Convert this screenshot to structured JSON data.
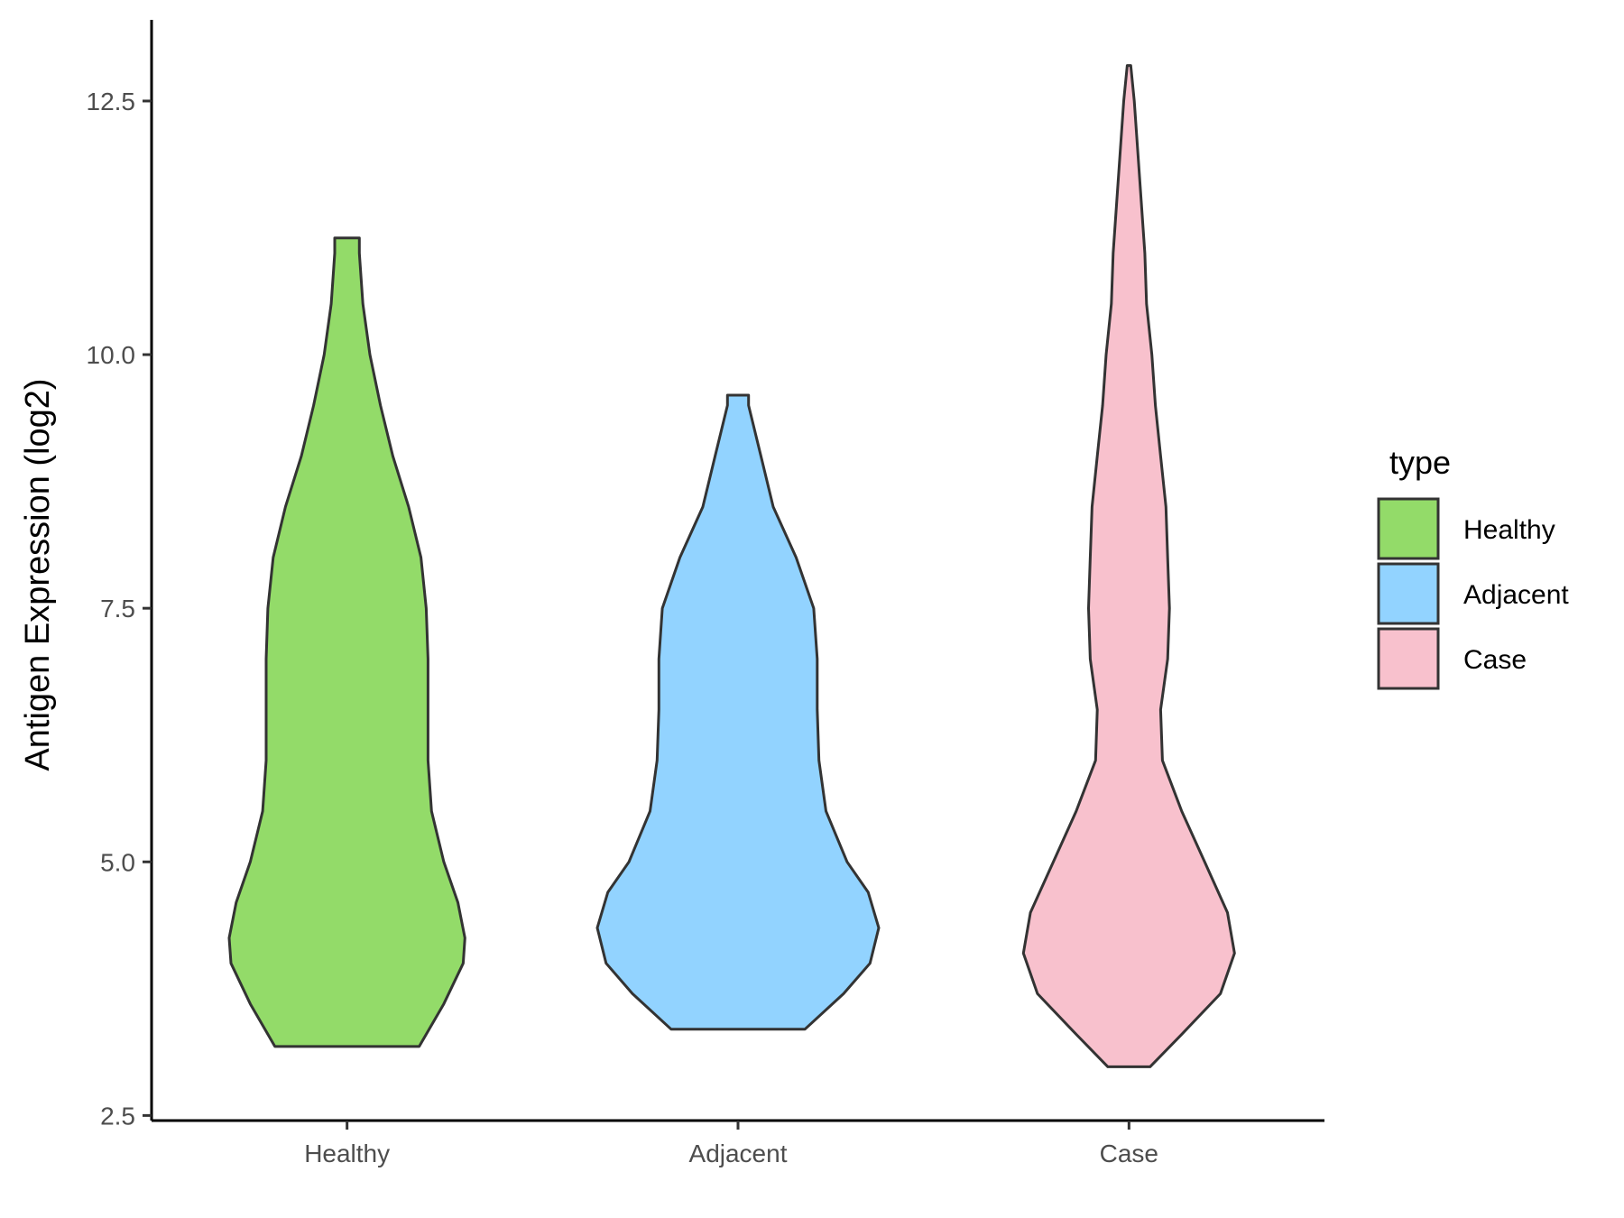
{
  "chart_data": {
    "type": "violin",
    "ylabel": "Antigen Expression (log2)",
    "ylim": [
      2.45,
      13.3
    ],
    "yticks": [
      2.5,
      5.0,
      7.5,
      10.0,
      12.5
    ],
    "ytick_labels": [
      "2.5",
      "5.0",
      "7.5",
      "10.0",
      "12.5"
    ],
    "categories": [
      "Healthy",
      "Adjacent",
      "Case"
    ],
    "legend": {
      "title": "type",
      "position": "right",
      "entries": [
        {
          "label": "Healthy",
          "color": "#93DB69"
        },
        {
          "label": "Adjacent",
          "color": "#92D3FF"
        },
        {
          "label": "Case",
          "color": "#F8C1CD"
        }
      ]
    },
    "series": [
      {
        "category": "Healthy",
        "color": "#93DB69",
        "min": 3.18,
        "max": 11.15,
        "profile": [
          [
            3.18,
            0.41
          ],
          [
            3.6,
            0.55
          ],
          [
            4.0,
            0.66
          ],
          [
            4.25,
            0.67
          ],
          [
            4.6,
            0.63
          ],
          [
            5.0,
            0.55
          ],
          [
            5.5,
            0.48
          ],
          [
            6.0,
            0.46
          ],
          [
            6.5,
            0.46
          ],
          [
            7.0,
            0.46
          ],
          [
            7.5,
            0.45
          ],
          [
            8.0,
            0.42
          ],
          [
            8.5,
            0.35
          ],
          [
            9.0,
            0.26
          ],
          [
            9.5,
            0.19
          ],
          [
            10.0,
            0.13
          ],
          [
            10.5,
            0.09
          ],
          [
            11.0,
            0.07
          ],
          [
            11.15,
            0.07
          ]
        ]
      },
      {
        "category": "Adjacent",
        "color": "#92D3FF",
        "min": 3.35,
        "max": 9.6,
        "profile": [
          [
            3.35,
            0.38
          ],
          [
            3.7,
            0.6
          ],
          [
            4.0,
            0.75
          ],
          [
            4.35,
            0.8
          ],
          [
            4.7,
            0.74
          ],
          [
            5.0,
            0.62
          ],
          [
            5.5,
            0.5
          ],
          [
            6.0,
            0.46
          ],
          [
            6.5,
            0.45
          ],
          [
            7.0,
            0.45
          ],
          [
            7.5,
            0.43
          ],
          [
            8.0,
            0.33
          ],
          [
            8.5,
            0.2
          ],
          [
            9.0,
            0.13
          ],
          [
            9.5,
            0.06
          ],
          [
            9.6,
            0.06
          ]
        ]
      },
      {
        "category": "Case",
        "color": "#F8C1CD",
        "min": 2.98,
        "max": 12.85,
        "profile": [
          [
            2.98,
            0.12
          ],
          [
            3.3,
            0.3
          ],
          [
            3.7,
            0.52
          ],
          [
            4.1,
            0.6
          ],
          [
            4.5,
            0.56
          ],
          [
            5.0,
            0.43
          ],
          [
            5.5,
            0.3
          ],
          [
            6.0,
            0.19
          ],
          [
            6.5,
            0.18
          ],
          [
            7.0,
            0.22
          ],
          [
            7.5,
            0.23
          ],
          [
            8.0,
            0.22
          ],
          [
            8.5,
            0.21
          ],
          [
            9.0,
            0.18
          ],
          [
            9.5,
            0.15
          ],
          [
            10.0,
            0.13
          ],
          [
            10.5,
            0.1
          ],
          [
            11.0,
            0.09
          ],
          [
            11.5,
            0.07
          ],
          [
            12.0,
            0.05
          ],
          [
            12.5,
            0.03
          ],
          [
            12.85,
            0.01
          ]
        ]
      }
    ]
  }
}
